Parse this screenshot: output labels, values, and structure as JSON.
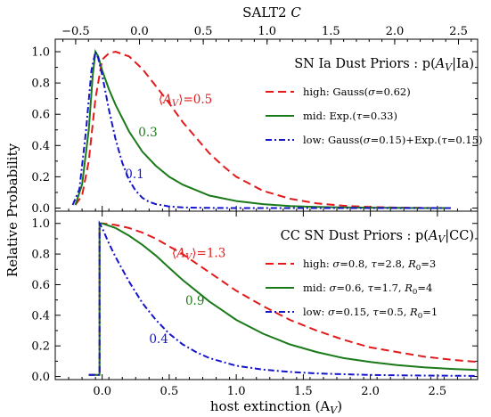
{
  "chart_data": [
    {
      "panel": "top",
      "type": "line",
      "top_axis_label": "SALT2 C",
      "top_axis_ticks": [
        "−0.5",
        "0.0",
        "0.5",
        "1.0",
        "1.5",
        "2.0",
        "2.5"
      ],
      "top_axis_tick_values": [
        -0.5,
        0.0,
        0.5,
        1.0,
        1.5,
        2.0,
        2.5
      ],
      "xlim": [
        -0.35,
        2.8
      ],
      "ylim": [
        -0.02,
        1.08
      ],
      "yticks": [
        "0.0",
        "0.2",
        "0.4",
        "0.6",
        "0.8",
        "1.0"
      ],
      "ytick_values": [
        0.0,
        0.2,
        0.4,
        0.6,
        0.8,
        1.0
      ],
      "legend_title": "SN Ia Dust Priors : p(A_V|Ia)",
      "series": [
        {
          "name": "high: Gauss(σ=0.62)",
          "color": "#e31a1c",
          "dash": "dashed",
          "x": [
            -0.2,
            -0.15,
            -0.1,
            -0.05,
            0.0,
            0.05,
            0.1,
            0.2,
            0.3,
            0.4,
            0.5,
            0.6,
            0.7,
            0.8,
            0.9,
            1.0,
            1.2,
            1.4,
            1.6,
            1.8,
            2.0,
            2.2,
            2.4,
            2.6
          ],
          "y": [
            0.02,
            0.08,
            0.3,
            0.7,
            0.95,
            0.99,
            1.0,
            0.97,
            0.89,
            0.78,
            0.67,
            0.55,
            0.45,
            0.35,
            0.27,
            0.2,
            0.11,
            0.06,
            0.03,
            0.015,
            0.007,
            0.003,
            0.001,
            0.0
          ]
        },
        {
          "name": "mid: Exp.(τ=0.33)",
          "color": "#1a7a1a",
          "dash": "solid",
          "x": [
            -0.2,
            -0.15,
            -0.1,
            -0.07,
            -0.05,
            -0.03,
            0.0,
            0.05,
            0.1,
            0.2,
            0.3,
            0.4,
            0.5,
            0.6,
            0.8,
            1.0,
            1.2,
            1.4,
            1.6,
            1.8,
            2.0,
            2.2,
            2.4,
            2.6
          ],
          "y": [
            0.02,
            0.15,
            0.5,
            0.85,
            1.0,
            0.97,
            0.88,
            0.76,
            0.66,
            0.49,
            0.36,
            0.27,
            0.2,
            0.15,
            0.08,
            0.045,
            0.025,
            0.013,
            0.007,
            0.004,
            0.002,
            0.001,
            0.0,
            0.0
          ]
        },
        {
          "name": "low: Gauss(σ=0.15)+Exp.(τ=0.15)",
          "color": "#1515cc",
          "dash": "dashdot",
          "x": [
            -0.22,
            -0.17,
            -0.12,
            -0.08,
            -0.05,
            -0.03,
            0.0,
            0.05,
            0.1,
            0.15,
            0.2,
            0.25,
            0.3,
            0.35,
            0.4,
            0.5,
            0.6,
            0.8,
            1.0,
            1.5,
            2.0,
            2.6
          ],
          "y": [
            0.02,
            0.12,
            0.5,
            0.88,
            1.0,
            0.96,
            0.85,
            0.63,
            0.44,
            0.29,
            0.18,
            0.11,
            0.065,
            0.04,
            0.025,
            0.01,
            0.004,
            0.001,
            0.0,
            0.0,
            0.0,
            0.0
          ]
        }
      ],
      "annotations": [
        {
          "text": "⟨A_V⟩=0.5",
          "color": "#e31a1c",
          "x": 0.42,
          "y": 0.67
        },
        {
          "text": "0.3",
          "color": "#1a7a1a",
          "x": 0.27,
          "y": 0.46
        },
        {
          "text": "0.1",
          "color": "#1515cc",
          "x": 0.17,
          "y": 0.19
        }
      ]
    },
    {
      "panel": "bottom",
      "type": "line",
      "xlabel": "host extinction (A_V)",
      "xticks": [
        "0.0",
        "0.5",
        "1.0",
        "1.5",
        "2.0",
        "2.5"
      ],
      "xtick_values": [
        0.0,
        0.5,
        1.0,
        1.5,
        2.0,
        2.5
      ],
      "xlim": [
        -0.35,
        2.8
      ],
      "ylim": [
        -0.02,
        1.08
      ],
      "yticks": [
        "0.0",
        "0.2",
        "0.4",
        "0.6",
        "0.8",
        "1.0"
      ],
      "ytick_values": [
        0.0,
        0.2,
        0.4,
        0.6,
        0.8,
        1.0
      ],
      "legend_title": "CC SN Dust Priors : p(A_V|CC)",
      "series": [
        {
          "name": "high: σ=0.8, τ=2.8, R0=3",
          "color": "#e31a1c",
          "dash": "dashed",
          "x": [
            -0.1,
            -0.02,
            -0.02,
            0.0,
            0.1,
            0.2,
            0.3,
            0.4,
            0.5,
            0.6,
            0.7,
            0.8,
            0.9,
            1.0,
            1.2,
            1.4,
            1.6,
            1.8,
            2.0,
            2.2,
            2.4,
            2.6,
            2.8
          ],
          "y": [
            0.01,
            0.01,
            1.0,
            1.0,
            0.99,
            0.97,
            0.94,
            0.9,
            0.85,
            0.8,
            0.74,
            0.68,
            0.62,
            0.56,
            0.46,
            0.37,
            0.3,
            0.24,
            0.19,
            0.16,
            0.13,
            0.11,
            0.095
          ]
        },
        {
          "name": "mid: σ=0.6, τ=1.7, R0=4",
          "color": "#1a7a1a",
          "dash": "solid",
          "x": [
            -0.1,
            -0.02,
            -0.02,
            0.0,
            0.1,
            0.2,
            0.3,
            0.4,
            0.5,
            0.6,
            0.7,
            0.8,
            0.9,
            1.0,
            1.2,
            1.4,
            1.6,
            1.8,
            2.0,
            2.2,
            2.4,
            2.6,
            2.8
          ],
          "y": [
            0.01,
            0.01,
            1.0,
            1.0,
            0.97,
            0.92,
            0.86,
            0.79,
            0.71,
            0.63,
            0.56,
            0.49,
            0.43,
            0.37,
            0.28,
            0.21,
            0.16,
            0.12,
            0.095,
            0.075,
            0.06,
            0.05,
            0.042
          ]
        },
        {
          "name": "low: σ=0.15, τ=0.5, R0=1",
          "color": "#1515cc",
          "dash": "dashdot",
          "x": [
            -0.1,
            -0.02,
            -0.02,
            0.0,
            0.05,
            0.1,
            0.2,
            0.3,
            0.4,
            0.5,
            0.6,
            0.7,
            0.8,
            1.0,
            1.2,
            1.4,
            1.6,
            1.8,
            2.0,
            2.2,
            2.4,
            2.6,
            2.8
          ],
          "y": [
            0.01,
            0.01,
            1.0,
            0.97,
            0.87,
            0.78,
            0.62,
            0.48,
            0.37,
            0.28,
            0.21,
            0.16,
            0.12,
            0.07,
            0.045,
            0.03,
            0.02,
            0.015,
            0.01,
            0.008,
            0.006,
            0.005,
            0.004
          ]
        }
      ],
      "annotations": [
        {
          "text": "⟨A_V⟩=1.3",
          "color": "#e31a1c",
          "x": 0.52,
          "y": 0.78
        },
        {
          "text": "0.9",
          "color": "#1a7a1a",
          "x": 0.62,
          "y": 0.47
        },
        {
          "text": "0.4",
          "color": "#1515cc",
          "x": 0.35,
          "y": 0.22
        }
      ]
    }
  ],
  "shared": {
    "ylabel": "Relative Probability"
  }
}
